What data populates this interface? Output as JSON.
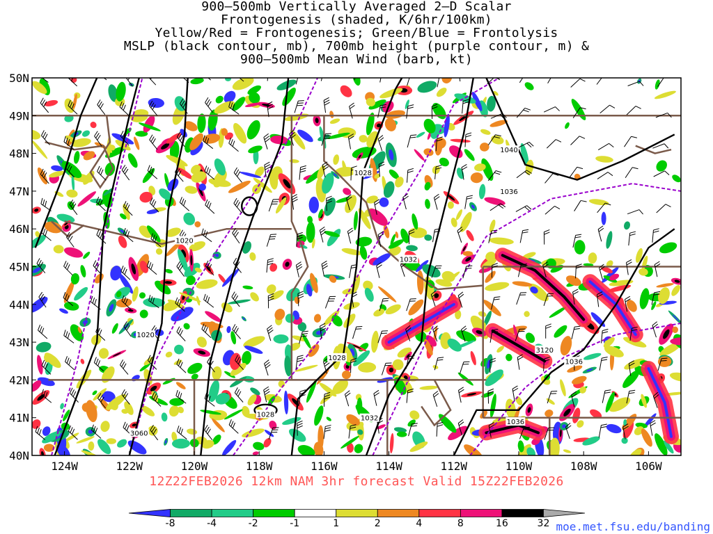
{
  "title": {
    "line1": "900–500mb Vertically Averaged 2–D Scalar",
    "line2": "Frontogenesis (shaded, K/6hr/100km)",
    "line3": "Yellow/Red = Frontogenesis;  Green/Blue = Frontolysis",
    "line4": "MSLP (black contour, mb), 700mb height (purple contour, m) &",
    "line5": "900–500mb Mean Wind (barb, kt)"
  },
  "subtitle": "12Z22FEB2026 12km NAM 3hr forecast Valid 15Z22FEB2026",
  "credit": "moe.met.fsu.edu/banding",
  "lat_labels": [
    "50N",
    "49N",
    "48N",
    "47N",
    "46N",
    "45N",
    "44N",
    "43N",
    "42N",
    "41N",
    "40N"
  ],
  "lon_labels": [
    "124W",
    "122W",
    "120W",
    "118W",
    "116W",
    "114W",
    "112W",
    "110W",
    "108W",
    "106W"
  ],
  "map_extent": {
    "lon_min": -125.0,
    "lon_max": -105.0,
    "lat_min": 40.0,
    "lat_max": 50.0
  },
  "colorbar": {
    "labels": [
      "-8",
      "-4",
      "-2",
      "-1",
      "1",
      "2",
      "4",
      "8",
      "16",
      "32"
    ],
    "colors": [
      "#3333ff",
      "#11aa66",
      "#22cc88",
      "#00cc00",
      "#ffffff",
      "#dddd33",
      "#ee8822",
      "#ff3344",
      "#ee1177",
      "#000000",
      "#aaaaaa"
    ]
  },
  "mslp_labels": [
    {
      "text": "1020",
      "lon": -120.3,
      "lat": 45.7
    },
    {
      "text": "1020",
      "lon": -121.5,
      "lat": 43.2
    },
    {
      "text": "1028",
      "lon": -115.6,
      "lat": 42.6
    },
    {
      "text": "1028",
      "lon": -117.8,
      "lat": 41.1
    },
    {
      "text": "1028",
      "lon": -114.8,
      "lat": 47.5
    },
    {
      "text": "1032",
      "lon": -113.4,
      "lat": 45.2
    },
    {
      "text": "1032",
      "lon": -114.6,
      "lat": 41.0
    },
    {
      "text": "1036",
      "lon": -110.3,
      "lat": 47.0
    },
    {
      "text": "1036",
      "lon": -110.1,
      "lat": 40.9
    },
    {
      "text": "1036",
      "lon": -108.3,
      "lat": 42.5
    },
    {
      "text": "1040",
      "lon": -110.3,
      "lat": 48.1
    }
  ],
  "height_labels": [
    {
      "text": "3120",
      "lon": -109.2,
      "lat": 42.8
    },
    {
      "text": "3060",
      "lon": -121.7,
      "lat": 40.6
    }
  ],
  "colors": {
    "mslp": "#000000",
    "height": "#9900cc",
    "borders": "#7a5a4a",
    "subtitle": "#ff5555",
    "credit": "#3355ff"
  }
}
